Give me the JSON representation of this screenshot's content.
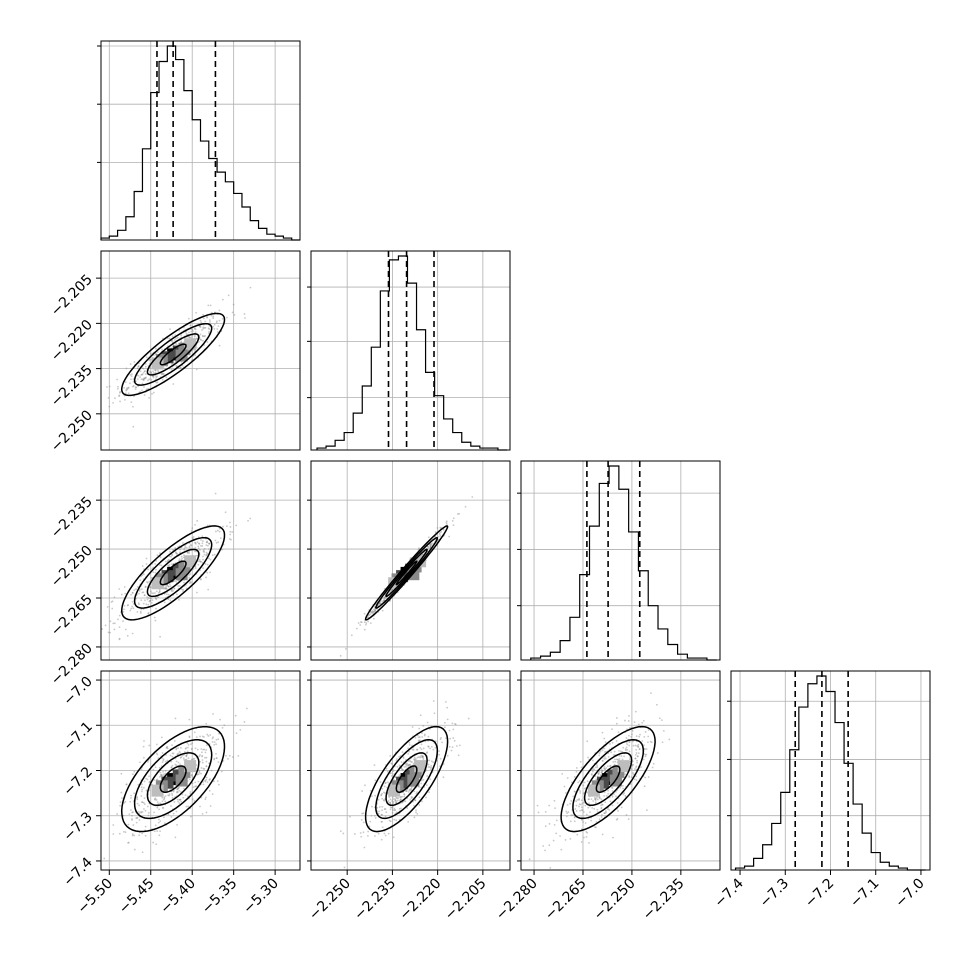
{
  "chart_data": {
    "type": "corner",
    "grid": true,
    "parameters": [
      {
        "xlim": [
          -5.51,
          -5.27
        ],
        "ticks": [
          -5.5,
          -5.45,
          -5.4,
          -5.35,
          -5.3
        ],
        "tick_labels": [
          "−5.50",
          "−5.45",
          "−5.40",
          "−5.35",
          "−5.30"
        ]
      },
      {
        "xlim": [
          -2.262,
          -2.196
        ],
        "ticks": [
          -2.25,
          -2.235,
          -2.22,
          -2.205
        ],
        "tick_labels": [
          "−2.250",
          "−2.235",
          "−2.220",
          "−2.205"
        ]
      },
      {
        "xlim": [
          -2.284,
          -2.223
        ],
        "ticks": [
          -2.28,
          -2.265,
          -2.25,
          -2.235
        ],
        "tick_labels": [
          "−2.280",
          "−2.265",
          "−2.250",
          "−2.235"
        ]
      },
      {
        "xlim": [
          -7.42,
          -6.98
        ],
        "ticks": [
          -7.4,
          -7.3,
          -7.2,
          -7.1,
          -7.0
        ],
        "tick_labels": [
          "−7.4",
          "−7.3",
          "−7.2",
          "−7.1",
          "−7.0"
        ]
      }
    ],
    "y_tick_params": {
      "1": {
        "ticks": [
          -2.205,
          -2.22,
          -2.235,
          -2.25
        ],
        "tick_labels": [
          "−2.205",
          "−2.220",
          "−2.235",
          "−2.250"
        ]
      },
      "2": {
        "ticks": [
          -2.235,
          -2.25,
          -2.265,
          -2.28
        ],
        "tick_labels": [
          "−2.235",
          "−2.250",
          "−2.265",
          "−2.280"
        ]
      },
      "3": {
        "ticks": [
          -7.0,
          -7.1,
          -7.2,
          -7.3,
          -7.4
        ],
        "tick_labels": [
          "−7.0",
          "−7.1",
          "−7.2",
          "−7.3",
          "−7.4"
        ]
      }
    },
    "histograms": [
      {
        "quantiles": [
          -5.4425,
          -5.423,
          -5.372
        ],
        "bins": [
          -5.51,
          -5.5,
          -5.49,
          -5.48,
          -5.47,
          -5.46,
          -5.45,
          -5.44,
          -5.43,
          -5.42,
          -5.41,
          -5.4,
          -5.39,
          -5.38,
          -5.37,
          -5.36,
          -5.35,
          -5.34,
          -5.33,
          -5.32,
          -5.31,
          -5.3,
          -5.29,
          -5.28,
          -5.27
        ],
        "counts": [
          1,
          2,
          5,
          12,
          25,
          47,
          76,
          92,
          100,
          93,
          77,
          62,
          51,
          42,
          35,
          30,
          24,
          17,
          10,
          6,
          3,
          2,
          1,
          0
        ],
        "y_ticks": [
          0.4,
          0.7,
          1.0
        ]
      },
      {
        "quantiles": [
          -2.2363,
          -2.2303,
          -2.2212
        ],
        "bins": [
          -2.26,
          -2.257,
          -2.254,
          -2.251,
          -2.248,
          -2.245,
          -2.242,
          -2.239,
          -2.236,
          -2.233,
          -2.23,
          -2.227,
          -2.224,
          -2.221,
          -2.218,
          -2.215,
          -2.212,
          -2.209,
          -2.206,
          -2.203,
          -2.2,
          -2.197
        ],
        "counts": [
          1,
          2,
          5,
          9,
          19,
          33,
          53,
          82,
          98,
          100,
          86,
          62,
          40,
          28,
          16,
          9,
          4,
          2,
          1,
          1,
          0
        ],
        "y_ticks": [
          0.27,
          0.56,
          0.84
        ]
      },
      {
        "quantiles": [
          -2.2638,
          -2.2573,
          -2.2476
        ],
        "bins": [
          -2.281,
          -2.278,
          -2.275,
          -2.272,
          -2.269,
          -2.266,
          -2.263,
          -2.26,
          -2.257,
          -2.254,
          -2.251,
          -2.248,
          -2.245,
          -2.242,
          -2.239,
          -2.236,
          -2.233,
          -2.23,
          -2.227,
          -2.224
        ],
        "counts": [
          1,
          2,
          4,
          10,
          22,
          44,
          69,
          91,
          100,
          88,
          66,
          46,
          28,
          16,
          8,
          3,
          1,
          1,
          0
        ],
        "y_ticks": [
          0.28,
          0.57,
          0.86
        ]
      },
      {
        "quantiles": [
          -7.278,
          -7.219,
          -7.161
        ],
        "bins": [
          -7.41,
          -7.39,
          -7.37,
          -7.35,
          -7.33,
          -7.31,
          -7.29,
          -7.27,
          -7.25,
          -7.23,
          -7.21,
          -7.19,
          -7.17,
          -7.15,
          -7.13,
          -7.11,
          -7.09,
          -7.07,
          -7.05,
          -7.03,
          -7.01,
          -6.99
        ],
        "counts": [
          1,
          2,
          6,
          13,
          24,
          40,
          62,
          84,
          96,
          100,
          92,
          76,
          55,
          34,
          19,
          9,
          4,
          2,
          1,
          0,
          0
        ],
        "y_ticks": [
          0.28,
          0.57,
          0.87
        ]
      }
    ],
    "joint_panels": [
      {
        "row": 1,
        "col": 0,
        "mean": [
          -5.423,
          -2.2303
        ],
        "sd": [
          0.031,
          0.0068
        ],
        "corr": 0.85,
        "points": 550
      },
      {
        "row": 2,
        "col": 0,
        "mean": [
          -5.423,
          -2.2573
        ],
        "sd": [
          0.031,
          0.0072
        ],
        "corr": 0.8,
        "points": 550
      },
      {
        "row": 2,
        "col": 1,
        "mean": [
          -2.2303,
          -2.2573
        ],
        "sd": [
          0.0068,
          0.0072
        ],
        "corr": 0.985,
        "points": 550
      },
      {
        "row": 3,
        "col": 0,
        "mean": [
          -5.423,
          -7.219
        ],
        "sd": [
          0.031,
          0.058
        ],
        "corr": 0.62,
        "points": 550
      },
      {
        "row": 3,
        "col": 1,
        "mean": [
          -2.2303,
          -7.219
        ],
        "sd": [
          0.0068,
          0.058
        ],
        "corr": 0.72,
        "points": 550
      },
      {
        "row": 3,
        "col": 2,
        "mean": [
          -2.2573,
          -7.219
        ],
        "sd": [
          0.0072,
          0.058
        ],
        "corr": 0.72,
        "points": 550
      }
    ],
    "contour_levels_sigma": [
      0.5,
      1.0,
      1.5,
      2.0
    ]
  }
}
